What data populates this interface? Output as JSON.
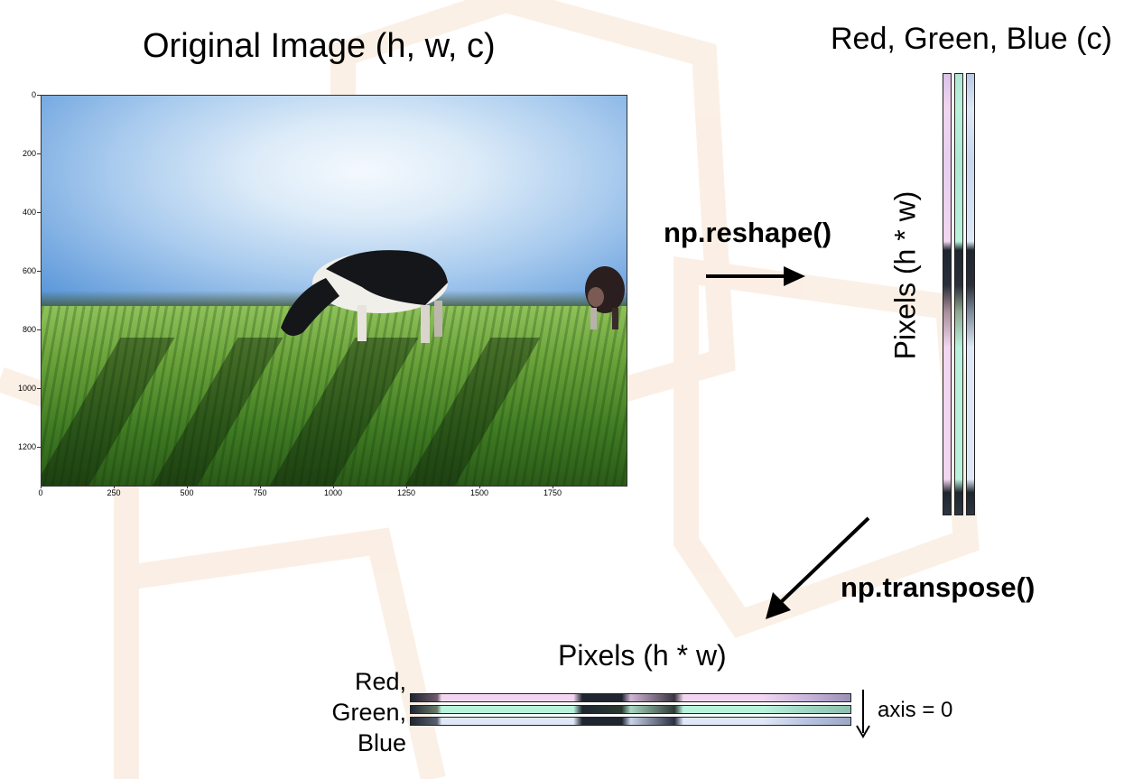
{
  "titles": {
    "original_image": "Original Image (h, w, c)",
    "channels": "Red, Green, Blue (c)",
    "pixels_vertical": "Pixels (h * w)",
    "pixels_horizontal": "Pixels (h * w)"
  },
  "operations": {
    "reshape": "np.reshape()",
    "transpose": "np.transpose()"
  },
  "rgb_labels": [
    "Red,",
    "Green,",
    "Blue"
  ],
  "axis_label": "axis = 0",
  "plot": {
    "y_ticks": [
      "0",
      "200",
      "400",
      "600",
      "800",
      "1000",
      "1200"
    ],
    "x_ticks": [
      "0",
      "250",
      "500",
      "750",
      "1000",
      "1250",
      "1500",
      "1750"
    ]
  },
  "colors": {
    "red_channel": "#f2d6f0",
    "green_channel": "#b9f2dc",
    "blue_channel": "#dfe8f7",
    "dark_band": "#1f2630",
    "watermark": "#fbeee2"
  }
}
